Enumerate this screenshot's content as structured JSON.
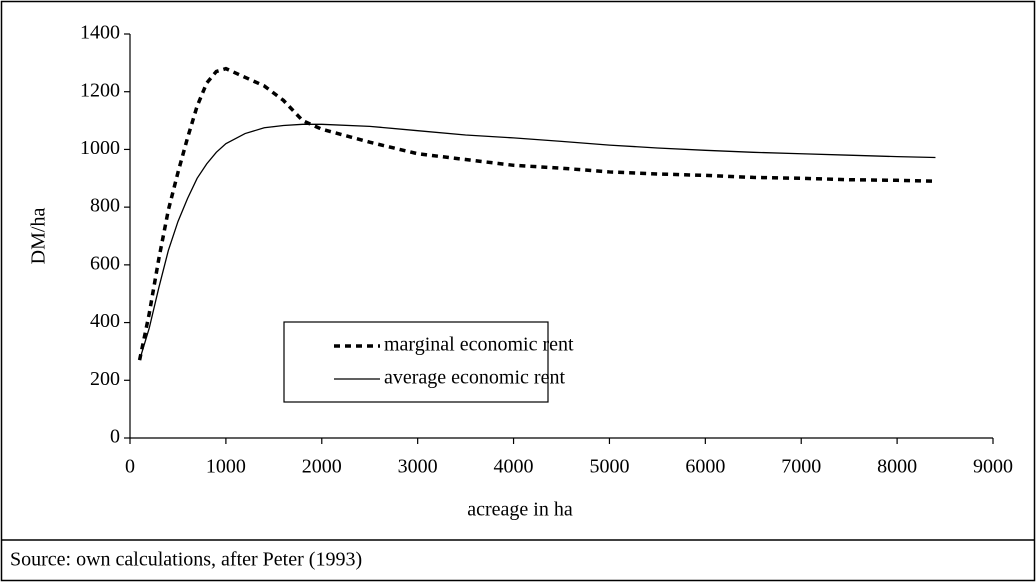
{
  "chart_data": {
    "type": "line",
    "x_label": "acreage in ha",
    "y_label": "DM/ha",
    "note": "Source: own calculations, after Peter (1993)",
    "x": [
      100,
      200,
      300,
      400,
      500,
      600,
      700,
      800,
      900,
      1000,
      1200,
      1400,
      1600,
      1800,
      2000,
      2500,
      3000,
      3500,
      4000,
      4500,
      5000,
      5500,
      6000,
      6500,
      7000,
      7500,
      8000,
      8400
    ],
    "series": [
      {
        "name": "marginal economic rent",
        "color": "#000000",
        "style": "dotted",
        "values": [
          270,
          430,
          620,
          790,
          920,
          1040,
          1150,
          1230,
          1270,
          1280,
          1250,
          1220,
          1170,
          1100,
          1070,
          1025,
          985,
          965,
          945,
          935,
          922,
          915,
          910,
          903,
          900,
          895,
          893,
          890
        ]
      },
      {
        "name": "average economic rent",
        "color": "#000000",
        "style": "solid",
        "values": [
          270,
          380,
          520,
          650,
          750,
          830,
          900,
          950,
          990,
          1020,
          1055,
          1075,
          1083,
          1087,
          1087,
          1080,
          1065,
          1050,
          1040,
          1028,
          1015,
          1005,
          997,
          990,
          985,
          980,
          975,
          972
        ]
      }
    ],
    "xlim": [
      0,
      9000
    ],
    "xticks": [
      0,
      1000,
      2000,
      3000,
      4000,
      5000,
      6000,
      7000,
      8000,
      9000
    ],
    "ylim": [
      0,
      1400
    ],
    "yticks": [
      0,
      200,
      400,
      600,
      800,
      1000,
      1200,
      1400
    ],
    "grid": false,
    "legend": "lower left"
  }
}
